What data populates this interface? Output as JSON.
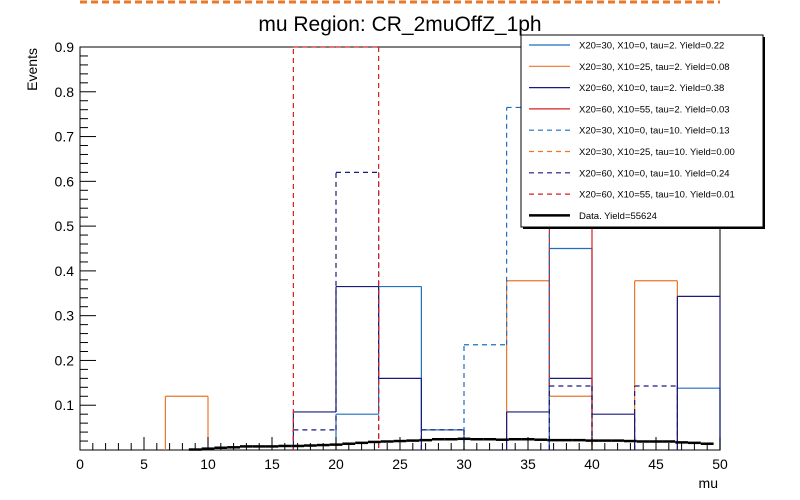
{
  "chart_data": {
    "type": "histogram",
    "title": "mu Region: CR_2muOffZ_1ph",
    "xlabel": "mu",
    "ylabel": "Events",
    "xlim": [
      0,
      50
    ],
    "ylim": [
      0,
      0.9
    ],
    "xticks": [
      "0",
      "5",
      "10",
      "15",
      "20",
      "25",
      "30",
      "35",
      "40",
      "45",
      "50"
    ],
    "yticks": [
      "0.1",
      "0.2",
      "0.3",
      "0.4",
      "0.5",
      "0.6",
      "0.7",
      "0.8",
      "0.9"
    ],
    "bin_edges": [
      0,
      3.33,
      6.67,
      10,
      13.33,
      16.67,
      20,
      23.33,
      26.67,
      30,
      33.33,
      36.67,
      40,
      43.33,
      46.67,
      50
    ],
    "series": [
      {
        "name": "X20=30, X10=0, tau=2. Yield=0.22",
        "color": "#1f6fbf",
        "style": "solid",
        "values": [
          0,
          0,
          0,
          0,
          0,
          0,
          0.08,
          0.365,
          0.045,
          0,
          0,
          0.45,
          0,
          0,
          0.138
        ]
      },
      {
        "name": "X20=30, X10=25, tau=2. Yield=0.08",
        "color": "#e8782a",
        "style": "solid",
        "values": [
          0,
          0,
          0.12,
          0,
          0,
          0,
          0,
          0,
          0,
          0,
          0.378,
          0.12,
          0,
          0.378,
          0
        ]
      },
      {
        "name": "X20=60, X10=0, tau=2. Yield=0.38",
        "color": "#1a1a7a",
        "style": "solid",
        "values": [
          0,
          0,
          0,
          0,
          0,
          0.085,
          0.365,
          0.16,
          0,
          0,
          0.085,
          0.16,
          0.08,
          0,
          0.343
        ]
      },
      {
        "name": "X20=60, X10=55, tau=2. Yield=0.03",
        "color": "#d62020",
        "style": "solid",
        "values": [
          0,
          0,
          0,
          0,
          0,
          0,
          0,
          0,
          0,
          0,
          0,
          0.9,
          0,
          0,
          0
        ]
      },
      {
        "name": "X20=30, X10=0, tau=10. Yield=0.13",
        "color": "#1f6fbf",
        "style": "dashed",
        "values": [
          0,
          0,
          0,
          0,
          0,
          0,
          0,
          0,
          0,
          0.235,
          0.765,
          0,
          0,
          0,
          0
        ]
      },
      {
        "name": "X20=30, X10=25, tau=10. Yield=0.00",
        "color": "#e8782a",
        "style": "dashed",
        "values": [
          0,
          0,
          0,
          0,
          0,
          0,
          0,
          0,
          0,
          0,
          0,
          0,
          0,
          0,
          0
        ]
      },
      {
        "name": "X20=60, X10=0, tau=10. Yield=0.24",
        "color": "#1a1a7a",
        "style": "dashed",
        "values": [
          0,
          0,
          0,
          0,
          0,
          0.045,
          0.62,
          0,
          0.045,
          0,
          0,
          0.143,
          0,
          0.143,
          0
        ]
      },
      {
        "name": "X20=60, X10=55, tau=10. Yield=0.01",
        "color": "#d62020",
        "style": "dashed",
        "values": [
          0,
          0,
          0,
          0,
          0,
          0.9,
          0.9,
          0,
          0,
          0,
          0,
          0,
          0,
          0,
          0
        ]
      },
      {
        "name": "Data. Yield=55624",
        "color": "#000000",
        "style": "data",
        "x": [
          9,
          10,
          11,
          12,
          13,
          14,
          15,
          16,
          17,
          18,
          19,
          20,
          21,
          22,
          23,
          24,
          25,
          26,
          27,
          28,
          29,
          30,
          31,
          32,
          33,
          34,
          35,
          36,
          37,
          38,
          39,
          40,
          41,
          42,
          43,
          44,
          45,
          46,
          47,
          48,
          49
        ],
        "values": [
          0.001,
          0.003,
          0.005,
          0.006,
          0.008,
          0.008,
          0.008,
          0.009,
          0.009,
          0.01,
          0.011,
          0.012,
          0.014,
          0.016,
          0.018,
          0.019,
          0.02,
          0.021,
          0.022,
          0.024,
          0.024,
          0.025,
          0.024,
          0.024,
          0.023,
          0.024,
          0.024,
          0.023,
          0.022,
          0.022,
          0.022,
          0.021,
          0.021,
          0.021,
          0.02,
          0.019,
          0.019,
          0.019,
          0.017,
          0.016,
          0.014
        ]
      }
    ]
  }
}
